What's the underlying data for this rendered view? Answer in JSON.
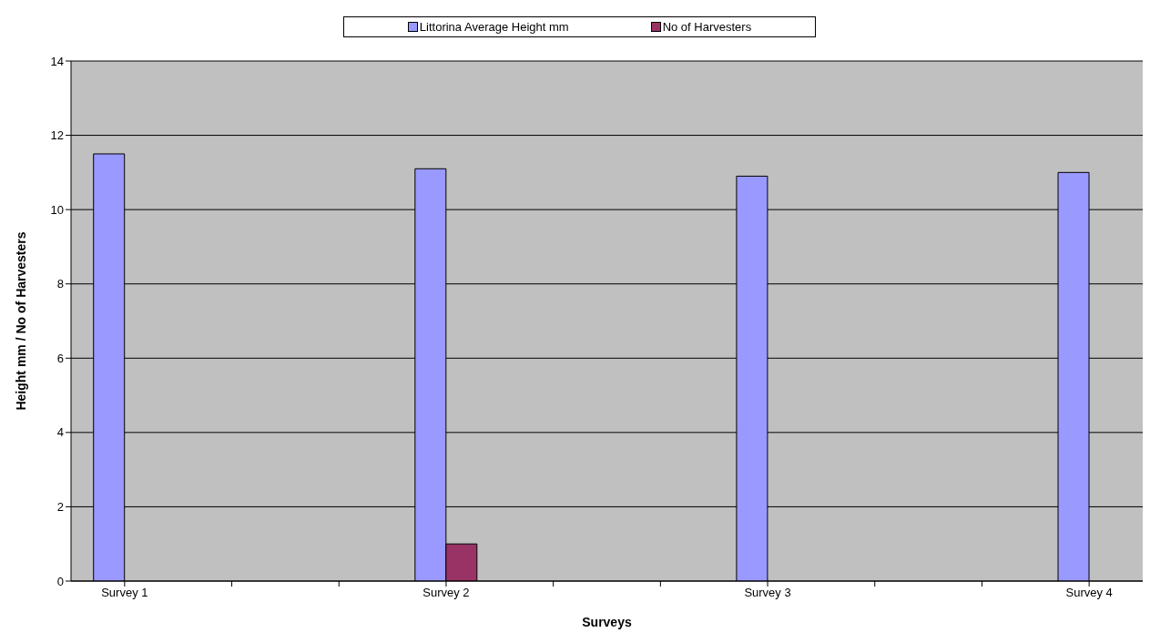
{
  "chart_data": {
    "type": "bar",
    "xlabel": "Surveys",
    "ylabel": "Height mm / No of Harvesters",
    "categories": [
      "Survey 1",
      null,
      null,
      "Survey 2",
      null,
      null,
      "Survey 3",
      null,
      null,
      "Survey 4"
    ],
    "series": [
      {
        "name": "Littorina Average Height mm",
        "color": "#9999ff",
        "values": [
          11.5,
          null,
          null,
          11.1,
          null,
          null,
          10.9,
          null,
          null,
          11.0
        ]
      },
      {
        "name": "No of Harvesters",
        "color": "#993366",
        "values": [
          0,
          null,
          null,
          1,
          null,
          null,
          0,
          null,
          null,
          0
        ]
      }
    ],
    "ylim": [
      0,
      14
    ],
    "yticks": [
      0,
      2,
      4,
      6,
      8,
      10,
      12,
      14
    ],
    "grid": "y",
    "legend": "top"
  }
}
